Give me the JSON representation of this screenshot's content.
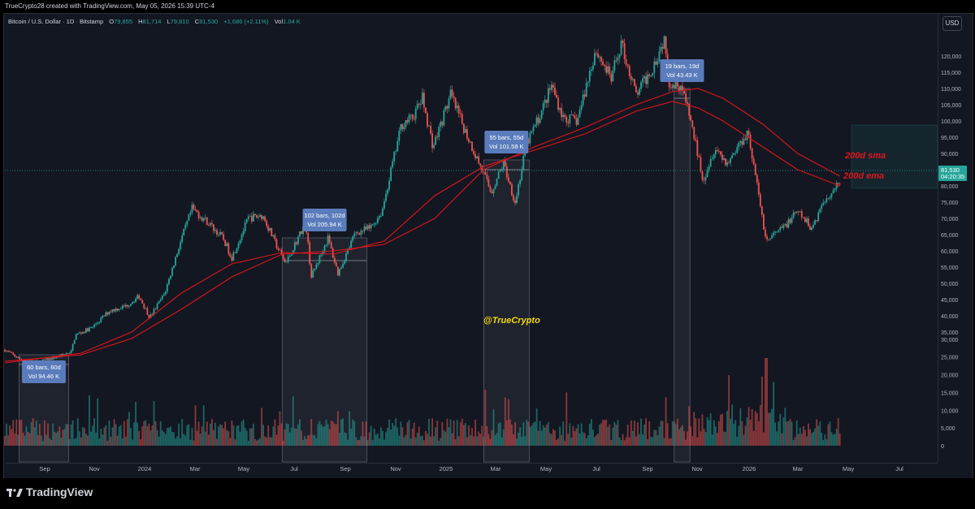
{
  "credit": "TrueCrypto28 created with TradingView.com, May 05, 2026 15:39 UTC-4",
  "legend": {
    "symbol": "Bitcoin / U.S. Dollar · 1D · Bitstamp",
    "o_label": "O",
    "o": "79,855",
    "h_label": "H",
    "h": "81,714",
    "l_label": "L",
    "l": "79,810",
    "c_label": "C",
    "c": "81,530",
    "change": "+1,686 (+2.11%)",
    "vol_label": "Vol",
    "vol": "1.04 K"
  },
  "currency_button": "USD",
  "price_tag": {
    "price": "81,530",
    "timer": "04:20:35"
  },
  "annotations": {
    "sma_label": "200d sma",
    "ema_label": "200d ema",
    "watermark": "@TrueCrypto"
  },
  "measure_boxes": [
    {
      "bars": "60 bars, 60d",
      "vol": "Vol 94.46 K"
    },
    {
      "bars": "102 bars, 102d",
      "vol": "Vol 205.94 K"
    },
    {
      "bars": "55 bars, 55d",
      "vol": "Vol 101.58 K"
    },
    {
      "bars": "19 bars, 19d",
      "vol": "Vol 43.43 K"
    }
  ],
  "brand": "TradingView",
  "colors": {
    "background": "#131722",
    "up": "#26a69a",
    "down": "#ef5350",
    "ma": "#e0151b",
    "measure": "#5b7cbc",
    "watermark": "#f5d90a"
  },
  "chart_data": {
    "type": "candlestick",
    "title": "Bitcoin / U.S. Dollar · 1D · Bitstamp",
    "x_ticks": [
      "Sep",
      "Nov",
      "2024",
      "Mar",
      "May",
      "Jul",
      "Sep",
      "Nov",
      "2025",
      "Mar",
      "May",
      "Jul",
      "Sep",
      "Nov",
      "2026",
      "Mar",
      "May",
      "Jul"
    ],
    "y_ticks": [
      "120,000",
      "115,000",
      "110,000",
      "105,000",
      "100,000",
      "95,000",
      "90,000",
      "85,000",
      "80,000",
      "75,000",
      "70,000",
      "65,000",
      "60,000",
      "55,000",
      "50,000",
      "45,000",
      "40,000",
      "35,000",
      "30,000",
      "25,000",
      "20,000",
      "15,000",
      "10,000",
      "5,000",
      "0"
    ],
    "ylim": [
      0,
      125000
    ],
    "price_path": [
      [
        "2023-08-01",
        29500
      ],
      [
        "2023-08-20",
        26500
      ],
      [
        "2023-09-10",
        25800
      ],
      [
        "2023-10-05",
        27500
      ],
      [
        "2023-10-20",
        29000
      ],
      [
        "2023-10-25",
        34000
      ],
      [
        "2023-11-15",
        36500
      ],
      [
        "2023-12-05",
        41500
      ],
      [
        "2023-12-25",
        43000
      ],
      [
        "2024-01-10",
        46000
      ],
      [
        "2024-01-23",
        39500
      ],
      [
        "2024-02-10",
        47000
      ],
      [
        "2024-02-28",
        62000
      ],
      [
        "2024-03-14",
        73000
      ],
      [
        "2024-04-01",
        69000
      ],
      [
        "2024-04-20",
        64000
      ],
      [
        "2024-05-01",
        58000
      ],
      [
        "2024-05-21",
        70000
      ],
      [
        "2024-06-07",
        71000
      ],
      [
        "2024-06-25",
        61000
      ],
      [
        "2024-07-05",
        56000
      ],
      [
        "2024-07-29",
        69000
      ],
      [
        "2024-08-05",
        52000
      ],
      [
        "2024-08-25",
        64000
      ],
      [
        "2024-09-06",
        53000
      ],
      [
        "2024-09-27",
        65500
      ],
      [
        "2024-10-15",
        67000
      ],
      [
        "2024-10-29",
        72000
      ],
      [
        "2024-11-12",
        88000
      ],
      [
        "2024-11-22",
        99000
      ],
      [
        "2024-12-05",
        101000
      ],
      [
        "2024-12-17",
        107000
      ],
      [
        "2024-12-30",
        92000
      ],
      [
        "2025-01-20",
        108000
      ],
      [
        "2025-02-05",
        98000
      ],
      [
        "2025-02-25",
        86000
      ],
      [
        "2025-03-10",
        78000
      ],
      [
        "2025-03-25",
        87000
      ],
      [
        "2025-04-08",
        75000
      ],
      [
        "2025-04-22",
        93000
      ],
      [
        "2025-05-10",
        103000
      ],
      [
        "2025-05-22",
        111000
      ],
      [
        "2025-06-05",
        101000
      ],
      [
        "2025-06-22",
        100000
      ],
      [
        "2025-07-14",
        122000
      ],
      [
        "2025-08-02",
        113000
      ],
      [
        "2025-08-14",
        124000
      ],
      [
        "2025-09-01",
        108000
      ],
      [
        "2025-09-20",
        116000
      ],
      [
        "2025-10-06",
        126000
      ],
      [
        "2025-10-10",
        112000
      ],
      [
        "2025-10-25",
        111000
      ],
      [
        "2025-11-05",
        101000
      ],
      [
        "2025-11-21",
        82000
      ],
      [
        "2025-12-05",
        92000
      ],
      [
        "2025-12-20",
        87000
      ],
      [
        "2026-01-14",
        97000
      ],
      [
        "2026-02-05",
        63000
      ],
      [
        "2026-02-25",
        67000
      ],
      [
        "2026-03-15",
        72000
      ],
      [
        "2026-04-01",
        67000
      ],
      [
        "2026-04-15",
        75000
      ],
      [
        "2026-05-05",
        81530
      ]
    ],
    "sma200_path": [
      [
        "2023-08-01",
        26000
      ],
      [
        "2023-11-01",
        28000
      ],
      [
        "2024-01-01",
        33000
      ],
      [
        "2024-03-01",
        42000
      ],
      [
        "2024-05-01",
        52000
      ],
      [
        "2024-07-01",
        59000
      ],
      [
        "2024-09-01",
        60000
      ],
      [
        "2024-11-01",
        62000
      ],
      [
        "2025-01-01",
        70000
      ],
      [
        "2025-03-01",
        85000
      ],
      [
        "2025-05-01",
        92000
      ],
      [
        "2025-07-01",
        98000
      ],
      [
        "2025-09-01",
        105000
      ],
      [
        "2025-10-15",
        109000
      ],
      [
        "2025-11-15",
        110000
      ],
      [
        "2025-12-15",
        107000
      ],
      [
        "2026-02-01",
        99000
      ],
      [
        "2026-03-15",
        90000
      ],
      [
        "2026-05-05",
        83000
      ]
    ],
    "ema200_path": [
      [
        "2023-08-01",
        25500
      ],
      [
        "2023-11-01",
        28500
      ],
      [
        "2024-01-01",
        35000
      ],
      [
        "2024-03-01",
        47000
      ],
      [
        "2024-05-01",
        56000
      ],
      [
        "2024-07-01",
        59500
      ],
      [
        "2024-09-01",
        59000
      ],
      [
        "2024-11-01",
        63000
      ],
      [
        "2025-01-01",
        77000
      ],
      [
        "2025-03-01",
        86000
      ],
      [
        "2025-05-01",
        91000
      ],
      [
        "2025-07-01",
        96000
      ],
      [
        "2025-09-01",
        103000
      ],
      [
        "2025-10-15",
        106000
      ],
      [
        "2025-11-15",
        104000
      ],
      [
        "2025-12-15",
        100000
      ],
      [
        "2026-02-01",
        92000
      ],
      [
        "2026-03-15",
        85000
      ],
      [
        "2026-05-05",
        80000
      ]
    ],
    "measure_ranges": [
      {
        "start": "2023-08-18",
        "end": "2023-10-17",
        "low": 25000,
        "high": 28000
      },
      {
        "start": "2024-07-01",
        "end": "2024-10-11",
        "low": 57000,
        "high": 64000
      },
      {
        "start": "2025-03-01",
        "end": "2025-04-25",
        "low": 85000,
        "high": 88000
      },
      {
        "start": "2025-10-17",
        "end": "2025-11-05",
        "low": 107000,
        "high": 110000
      }
    ],
    "volume_scale_max": 27000
  }
}
